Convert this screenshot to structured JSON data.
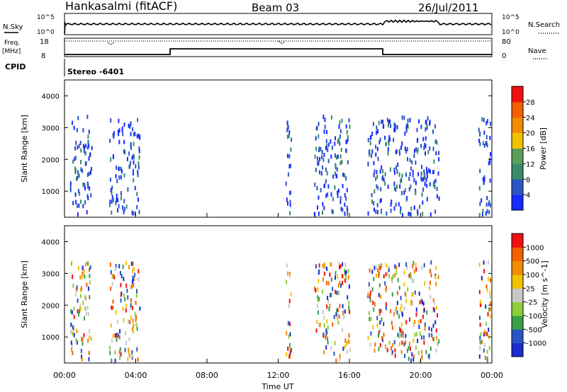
{
  "header": {
    "station": "Hankasalmi (fitACF)",
    "beam": "Beam 03",
    "date": "26/Jul/2011"
  },
  "status_panel": {
    "nsky_label": "N.Sky",
    "nsearch_label": "N.Search",
    "nsky_ticks": [
      "10^5",
      "10^0"
    ],
    "nsearch_ticks": [
      "10^5",
      "10^0"
    ],
    "freq_label": "Freq.",
    "freq_unit": "[MHz]",
    "freq_ticks": [
      "18",
      "8"
    ],
    "nave_label": "Nave",
    "nave_ticks": [
      "80",
      "0"
    ],
    "cpid_label": "CPID",
    "cpid_text": "Stereo  -6401"
  },
  "chart_data": [
    {
      "type": "heatmap",
      "name": "power-panel",
      "ylabel": "Slant Range [km]",
      "xlabel": "Time UT",
      "ylim": [
        180,
        4500
      ],
      "yticks": [
        1000,
        2000,
        3000,
        4000
      ],
      "xlim": [
        0,
        24
      ],
      "colorbar": {
        "label": "Power [dB]",
        "ticks": [
          "4",
          "8",
          "12",
          "16",
          "20",
          "24",
          "28"
        ],
        "colors": [
          "#1a2bff",
          "#2b55c4",
          "#3a8a6a",
          "#5a9e5a",
          "#f2c200",
          "#f28c00",
          "#f26000",
          "#ee1010"
        ]
      },
      "description_bands_hours": [
        [
          0.3,
          1.5
        ],
        [
          2.5,
          4.2
        ],
        [
          12.4,
          12.7
        ],
        [
          14.0,
          16.0
        ],
        [
          17.0,
          21.0
        ],
        [
          23.2,
          23.9
        ]
      ]
    },
    {
      "type": "heatmap",
      "name": "velocity-panel",
      "ylabel": "Slant Range [km]",
      "xlabel": "Time UT",
      "ylim": [
        180,
        4500
      ],
      "yticks": [
        1000,
        2000,
        3000,
        4000
      ],
      "xlim": [
        0,
        24
      ],
      "colorbar": {
        "label": "Velocity [m s^-1]",
        "ticks": [
          "1000",
          "500",
          "100",
          "25",
          "-25",
          "-100",
          "-500",
          "-1000"
        ],
        "colors": [
          "#1a2bd0",
          "#2b55c4",
          "#3aa04a",
          "#8ccf3a",
          "#c8c8c8",
          "#f2c200",
          "#f28c00",
          "#f26000",
          "#ee1010"
        ]
      }
    }
  ],
  "xaxis": {
    "ticks": [
      "00:00",
      "04:00",
      "08:00",
      "12:00",
      "16:00",
      "20:00",
      "00:00"
    ],
    "label": "Time UT"
  }
}
